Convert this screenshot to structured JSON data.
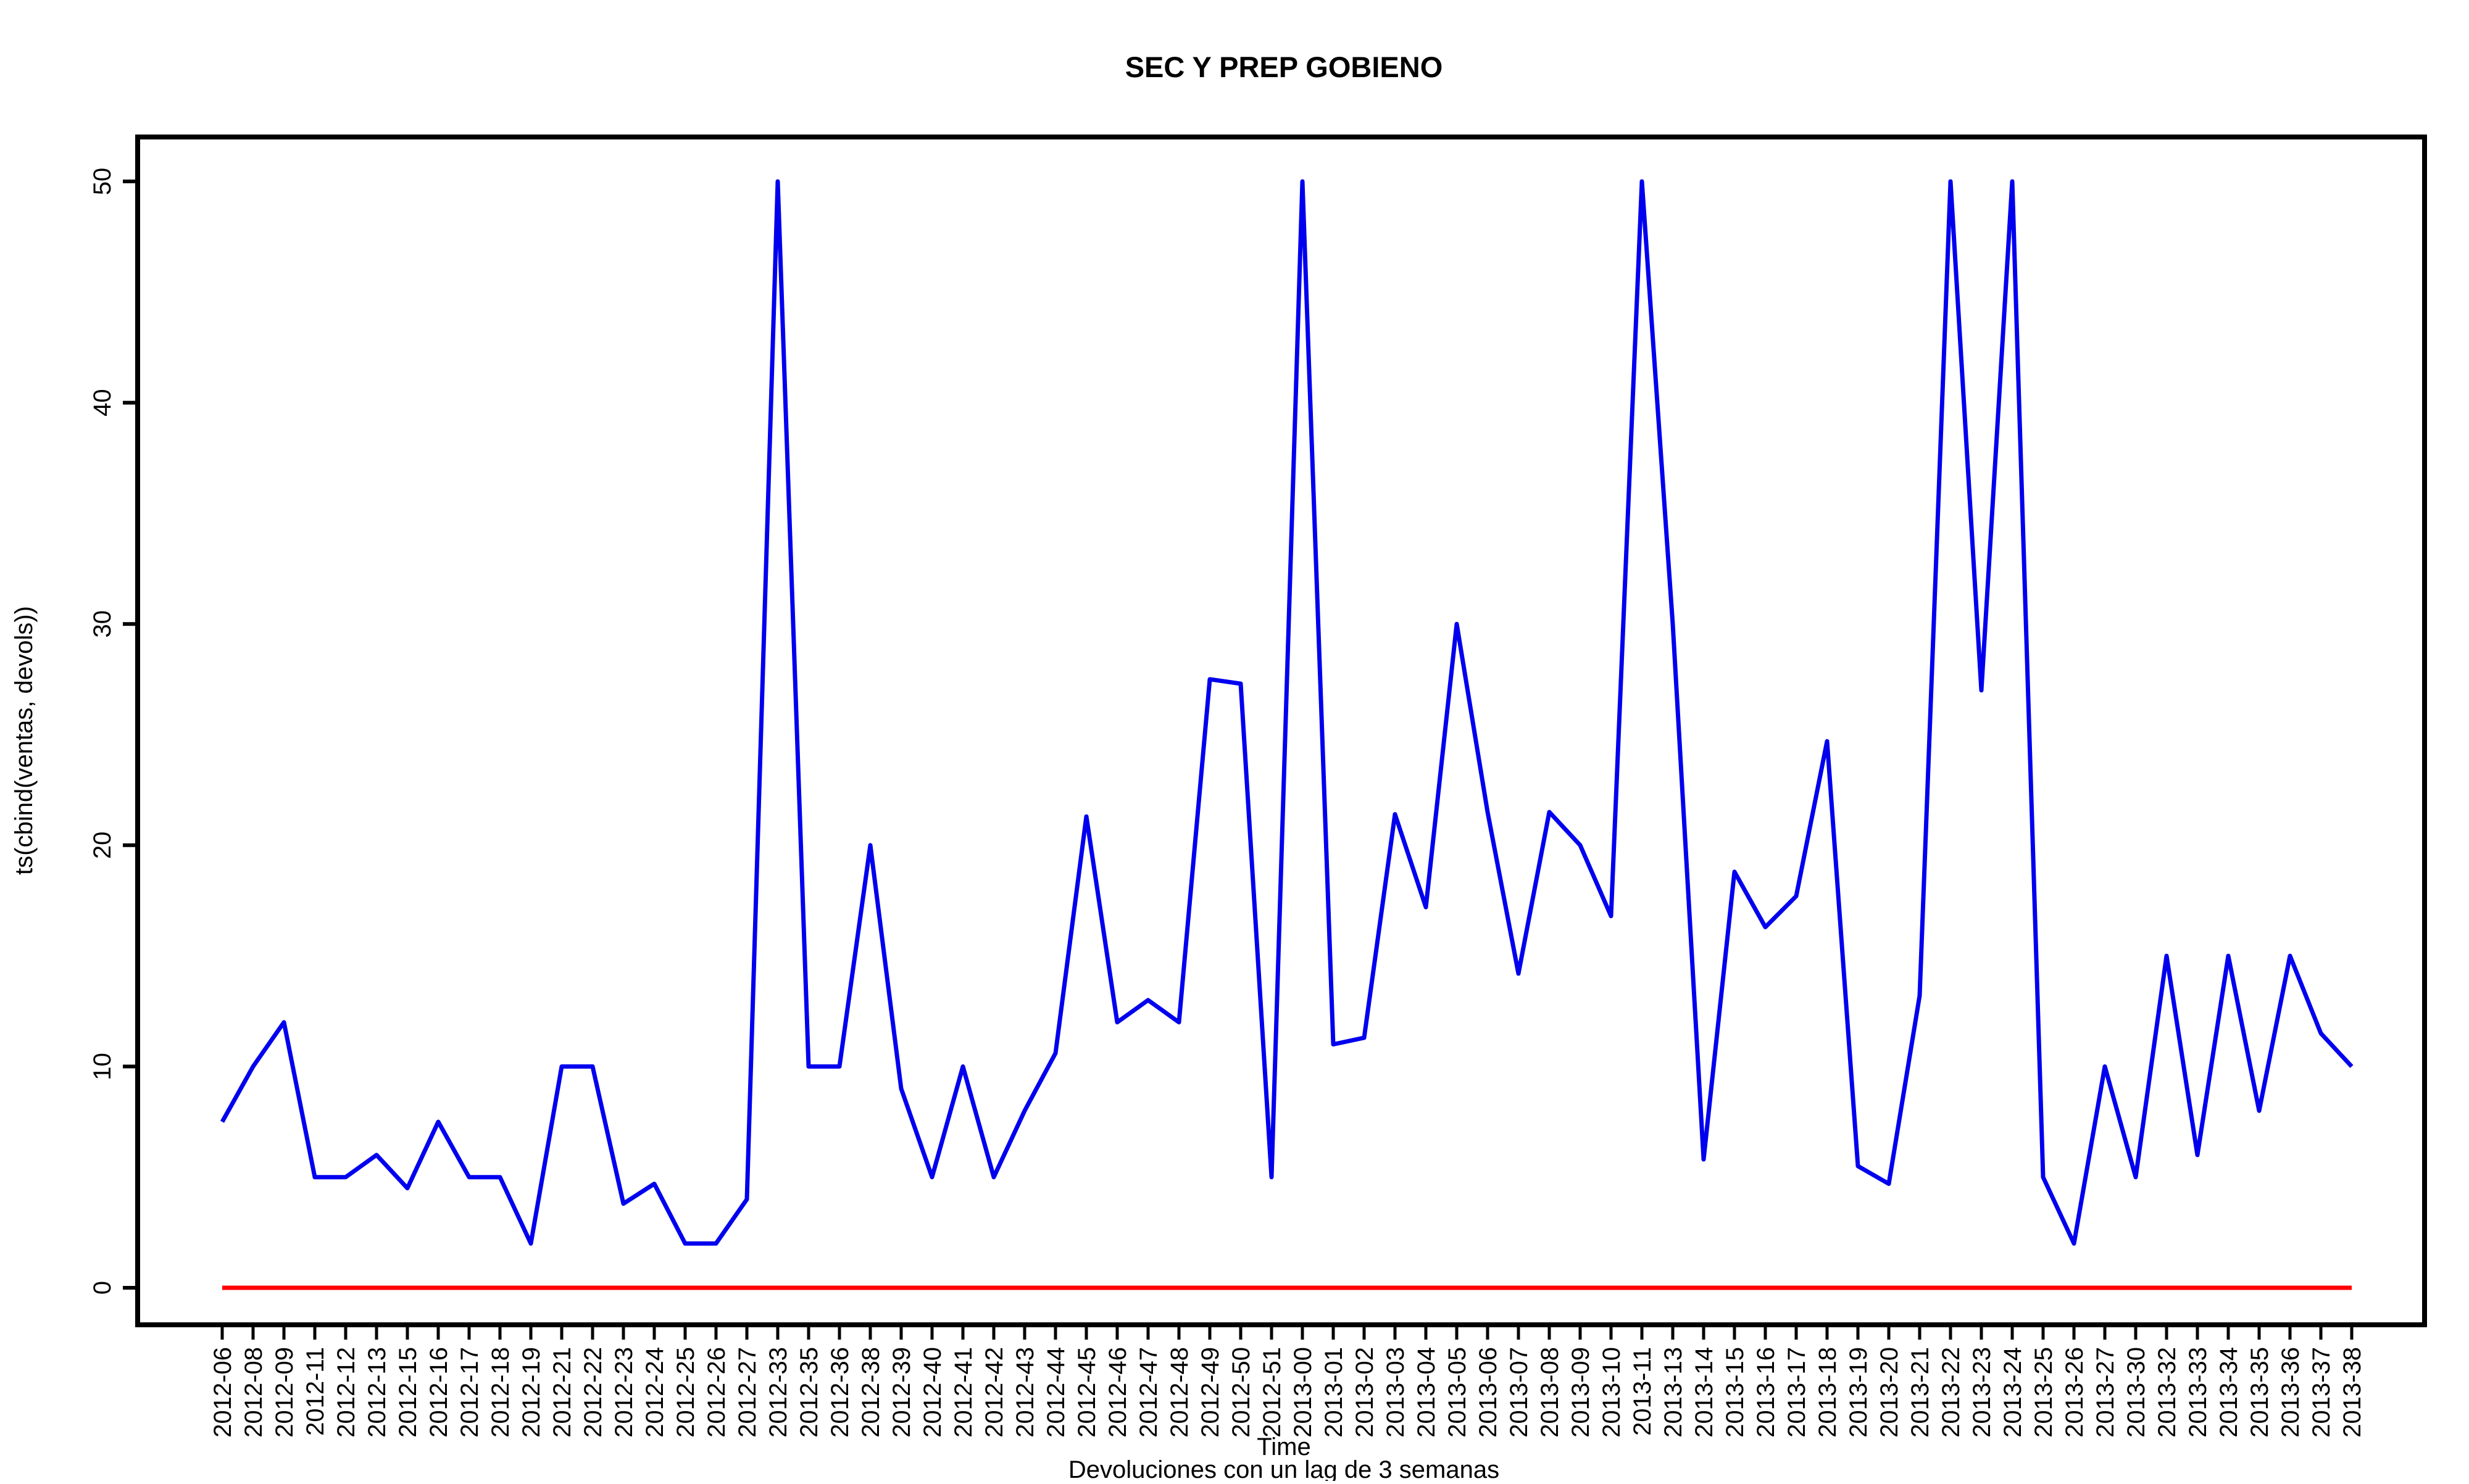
{
  "chart_data": {
    "type": "line",
    "title": "SEC Y PREP GOBIENO",
    "xlabel": "Time",
    "ylabel": "ts(cbind(ventas, devols))",
    "subtitle": "Devoluciones con un lag de 3 semanas",
    "ylim": [
      -2,
      52
    ],
    "yticks": [
      0,
      10,
      20,
      30,
      40,
      50
    ],
    "grid": false,
    "categories": [
      "2012-06",
      "2012-08",
      "2012-09",
      "2012-11",
      "2012-12",
      "2012-13",
      "2012-15",
      "2012-16",
      "2012-17",
      "2012-18",
      "2012-19",
      "2012-21",
      "2012-22",
      "2012-23",
      "2012-24",
      "2012-25",
      "2012-26",
      "2012-27",
      "2012-33",
      "2012-35",
      "2012-36",
      "2012-38",
      "2012-39",
      "2012-40",
      "2012-41",
      "2012-42",
      "2012-43",
      "2012-44",
      "2012-45",
      "2012-46",
      "2012-47",
      "2012-48",
      "2012-49",
      "2012-50",
      "2012-51",
      "2013-00",
      "2013-01",
      "2013-02",
      "2013-03",
      "2013-04",
      "2013-05",
      "2013-06",
      "2013-07",
      "2013-08",
      "2013-09",
      "2013-10",
      "2013-11",
      "2013-13",
      "2013-14",
      "2013-15",
      "2013-16",
      "2013-17",
      "2013-18",
      "2013-19",
      "2013-20",
      "2013-21",
      "2013-22",
      "2013-23",
      "2013-24",
      "2013-25",
      "2013-26",
      "2013-27",
      "2013-30",
      "2013-32",
      "2013-33",
      "2013-34",
      "2013-35",
      "2013-36",
      "2013-37",
      "2013-38"
    ],
    "series": [
      {
        "color": "#0000ee",
        "values": [
          7.5,
          10,
          12,
          5,
          5,
          6,
          4.5,
          7.5,
          5,
          5,
          2,
          10,
          10,
          3.8,
          4.7,
          2,
          2,
          4,
          50,
          10,
          10,
          20,
          9,
          5,
          10,
          5,
          8,
          10.6,
          21.3,
          12,
          13,
          12,
          27.5,
          27.3,
          5,
          50,
          11,
          11.3,
          21.4,
          17.2,
          30,
          21.5,
          14.2,
          21.5,
          20,
          16.8,
          50,
          30,
          5.8,
          18.8,
          16.3,
          17.7,
          24.7,
          5.5,
          4.7,
          13.2,
          50,
          27,
          50,
          5,
          2,
          10,
          5,
          15,
          6,
          15,
          8,
          15,
          11.5,
          10
        ]
      },
      {
        "color": "#ff0000",
        "values": [
          0,
          0,
          0,
          0,
          0,
          0,
          0,
          0,
          0,
          0,
          0,
          0,
          0,
          0,
          0,
          0,
          0,
          0,
          0,
          0,
          0,
          0,
          0,
          0,
          0,
          0,
          0,
          0,
          0,
          0,
          0,
          0,
          0,
          0,
          0,
          0,
          0,
          0,
          0,
          0,
          0,
          0,
          0,
          0,
          0,
          0,
          0,
          0,
          0,
          0,
          0,
          0,
          0,
          0,
          0,
          0,
          0,
          0,
          0,
          0,
          0,
          0,
          0,
          0,
          0,
          0,
          0,
          0,
          0,
          0
        ]
      }
    ]
  }
}
